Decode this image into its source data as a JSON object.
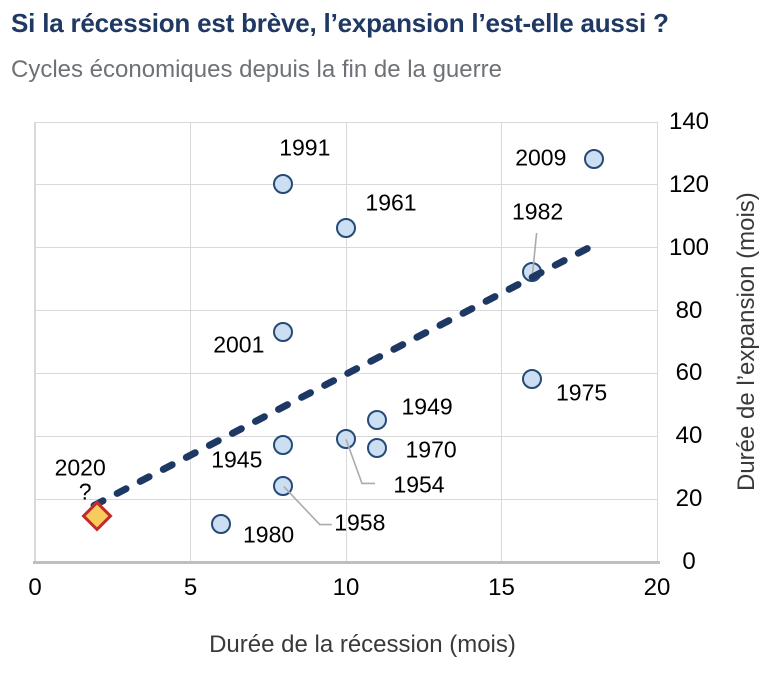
{
  "header": {
    "title": "Si la récession est brève, l’expansion l’est-elle aussi ?",
    "subtitle": "Cycles économiques depuis la fin de la guerre"
  },
  "colors": {
    "title": "#1F3864",
    "subtitle": "#6E7277",
    "axis_title": "#3A3A3A",
    "tick_text": "#000000",
    "grid": "#D9D9D9",
    "axis_line": "#BFBFBF",
    "marker_fill": "#CCDEF1",
    "marker_border": "#254A77",
    "trendline": "#1E3864",
    "leader": "#ABABAB",
    "diamond_fill": "#F8CC5C",
    "diamond_border": "#C3292E"
  },
  "chart_data": {
    "type": "scatter",
    "title": "Si la récession est brève, l’expansion l’est-elle aussi ?",
    "subtitle": "Cycles économiques depuis la fin de la guerre",
    "xlabel": "Durée de la récession (mois)",
    "ylabel": "Durée de l’expansion (mois)",
    "xlim": [
      0,
      20
    ],
    "ylim": [
      0,
      140
    ],
    "xticks": [
      0,
      5,
      10,
      15,
      20
    ],
    "yticks": [
      0,
      20,
      40,
      60,
      80,
      100,
      120,
      140
    ],
    "grid": true,
    "legend": false,
    "points": [
      {
        "label": "1991",
        "x": 8,
        "y": 120,
        "label_offset": [
          21,
          -37
        ]
      },
      {
        "label": "1961",
        "x": 10,
        "y": 106,
        "label_offset": [
          45,
          -26
        ]
      },
      {
        "label": "2009",
        "x": 18,
        "y": 128,
        "label_offset": [
          -54,
          -2
        ]
      },
      {
        "label": "1982",
        "x": 16,
        "y": 92,
        "label_offset": [
          5,
          -61
        ],
        "leader": [
          [
            4,
            -40
          ]
        ]
      },
      {
        "label": "2001",
        "x": 8,
        "y": 73,
        "label_offset": [
          -45,
          12
        ]
      },
      {
        "label": "1975",
        "x": 16,
        "y": 58,
        "label_offset": [
          49,
          13
        ]
      },
      {
        "label": "1949",
        "x": 11,
        "y": 45,
        "label_offset": [
          50,
          -14
        ]
      },
      {
        "label": "1970",
        "x": 11,
        "y": 36,
        "label_offset": [
          54,
          1
        ]
      },
      {
        "label": "1954",
        "x": 10,
        "y": 39,
        "label_offset": [
          73,
          46
        ],
        "leader": [
          [
            16,
            44
          ],
          [
            29,
            44
          ]
        ]
      },
      {
        "label": "1958",
        "x": 8,
        "y": 24,
        "label_offset": [
          76,
          36
        ],
        "leader": [
          [
            36,
            38
          ],
          [
            48,
            38
          ]
        ]
      },
      {
        "label": "1980",
        "x": 6,
        "y": 12,
        "label_offset": [
          47,
          11
        ]
      },
      {
        "label": "1945",
        "x": 8,
        "y": 37,
        "label_offset": [
          -47,
          14
        ]
      }
    ],
    "highlight_point": {
      "label": "2020",
      "sublabel": "?",
      "x": 2,
      "y": 14.5,
      "marker": "diamond",
      "label_offset": [
        -17,
        -48
      ],
      "sublabel_offset": [
        -12,
        -24
      ]
    },
    "trendline": {
      "style": "dashed",
      "x1": 1.9,
      "y1": 18,
      "x2": 18.1,
      "y2": 101.5
    }
  }
}
